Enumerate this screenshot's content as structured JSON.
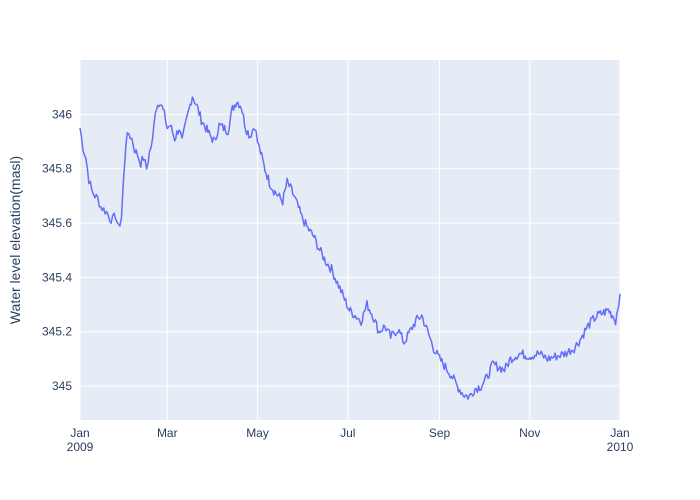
{
  "chart_data": {
    "type": "line",
    "xlabel": "",
    "ylabel": "Water level elevation(masl)",
    "xlim": [
      "2009-01-01",
      "2010-01-01"
    ],
    "ylim": [
      344.875,
      346.2
    ],
    "x_ticks": [
      {
        "date": "2009-01-01",
        "label": "Jan",
        "sublabel": "2009"
      },
      {
        "date": "2009-03-01",
        "label": "Mar",
        "sublabel": ""
      },
      {
        "date": "2009-05-01",
        "label": "May",
        "sublabel": ""
      },
      {
        "date": "2009-07-01",
        "label": "Jul",
        "sublabel": ""
      },
      {
        "date": "2009-09-01",
        "label": "Sep",
        "sublabel": ""
      },
      {
        "date": "2009-11-01",
        "label": "Nov",
        "sublabel": ""
      },
      {
        "date": "2010-01-01",
        "label": "Jan",
        "sublabel": "2010"
      }
    ],
    "y_ticks": [
      {
        "value": 345.0,
        "label": "345"
      },
      {
        "value": 345.2,
        "label": "345.2"
      },
      {
        "value": 345.4,
        "label": "345.4"
      },
      {
        "value": 345.6,
        "label": "345.6"
      },
      {
        "value": 345.8,
        "label": "345.8"
      },
      {
        "value": 346.0,
        "label": "346"
      }
    ],
    "grid": true,
    "colors": {
      "line": "#636efa",
      "plot_bg": "#e5ecf6",
      "grid": "#ffffff",
      "text": "#2a3f5f"
    },
    "series": [
      {
        "x": [
          "2009-01-01",
          "2009-01-03",
          "2009-01-05",
          "2009-01-07",
          "2009-01-09",
          "2009-01-11",
          "2009-01-13",
          "2009-01-15",
          "2009-01-17",
          "2009-01-19",
          "2009-01-21",
          "2009-01-23",
          "2009-01-25",
          "2009-01-27",
          "2009-01-29",
          "2009-02-01",
          "2009-02-03",
          "2009-02-05",
          "2009-02-07",
          "2009-02-09",
          "2009-02-11",
          "2009-02-13",
          "2009-02-15",
          "2009-02-17",
          "2009-02-19",
          "2009-02-21",
          "2009-02-24",
          "2009-02-27",
          "2009-03-01",
          "2009-03-03",
          "2009-03-06",
          "2009-03-09",
          "2009-03-11",
          "2009-03-13",
          "2009-03-15",
          "2009-03-18",
          "2009-03-21",
          "2009-03-24",
          "2009-03-27",
          "2009-03-30",
          "2009-04-02",
          "2009-04-05",
          "2009-04-08",
          "2009-04-11",
          "2009-04-14",
          "2009-04-17",
          "2009-04-20",
          "2009-04-23",
          "2009-04-26",
          "2009-04-29",
          "2009-05-01",
          "2009-05-03",
          "2009-05-06",
          "2009-05-09",
          "2009-05-12",
          "2009-05-15",
          "2009-05-18",
          "2009-05-21",
          "2009-05-24",
          "2009-05-27",
          "2009-05-31",
          "2009-06-04",
          "2009-06-08",
          "2009-06-12",
          "2009-06-16",
          "2009-06-20",
          "2009-06-24",
          "2009-06-28",
          "2009-07-02",
          "2009-07-06",
          "2009-07-10",
          "2009-07-14",
          "2009-07-18",
          "2009-07-22",
          "2009-07-26",
          "2009-07-30",
          "2009-08-04",
          "2009-08-08",
          "2009-08-12",
          "2009-08-16",
          "2009-08-20",
          "2009-08-24",
          "2009-08-28",
          "2009-09-01",
          "2009-09-05",
          "2009-09-09",
          "2009-09-13",
          "2009-09-17",
          "2009-09-21",
          "2009-09-25",
          "2009-09-29",
          "2009-10-03",
          "2009-10-07",
          "2009-10-11",
          "2009-10-15",
          "2009-10-19",
          "2009-10-25",
          "2009-11-01",
          "2009-11-07",
          "2009-11-13",
          "2009-11-19",
          "2009-11-25",
          "2009-12-01",
          "2009-12-05",
          "2009-12-09",
          "2009-12-13",
          "2009-12-17",
          "2009-12-21",
          "2009-12-24",
          "2009-12-27",
          "2009-12-29",
          "2010-01-01"
        ],
        "y": [
          345.95,
          345.88,
          345.84,
          345.76,
          345.72,
          345.7,
          345.69,
          345.66,
          345.65,
          345.64,
          345.62,
          345.61,
          345.63,
          345.58,
          345.62,
          345.9,
          345.93,
          345.91,
          345.87,
          345.85,
          345.82,
          345.84,
          345.8,
          345.86,
          345.9,
          346.02,
          346.05,
          346.0,
          345.95,
          345.96,
          345.91,
          345.95,
          345.9,
          345.95,
          346.0,
          346.07,
          346.03,
          345.98,
          345.95,
          345.92,
          345.9,
          345.96,
          345.95,
          345.94,
          346.02,
          346.05,
          346.03,
          345.95,
          345.92,
          345.96,
          345.9,
          345.86,
          345.8,
          345.75,
          345.72,
          345.7,
          345.68,
          345.75,
          345.72,
          345.68,
          345.62,
          345.58,
          345.55,
          345.5,
          345.46,
          345.43,
          345.38,
          345.33,
          345.28,
          345.26,
          345.24,
          345.3,
          345.26,
          345.2,
          345.22,
          345.18,
          345.21,
          345.16,
          345.2,
          345.24,
          345.26,
          345.2,
          345.14,
          345.1,
          345.07,
          345.04,
          345.0,
          344.97,
          344.96,
          344.99,
          345.0,
          345.03,
          345.08,
          345.07,
          345.06,
          345.1,
          345.12,
          345.11,
          345.12,
          345.1,
          345.11,
          345.12,
          345.14,
          345.17,
          345.21,
          345.24,
          345.26,
          345.27,
          345.28,
          345.26,
          345.24,
          345.34
        ]
      }
    ]
  }
}
